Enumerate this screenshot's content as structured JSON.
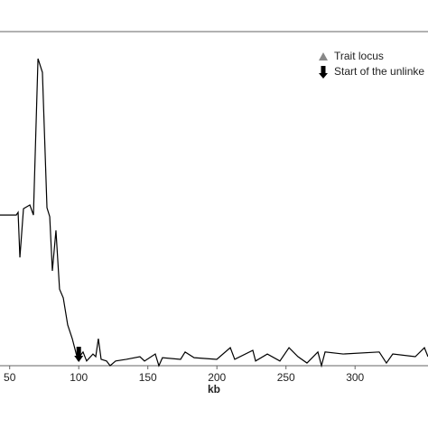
{
  "chart_data": {
    "type": "line",
    "x_label": "kb",
    "x": [
      43.0,
      54.8,
      56.1,
      57.4,
      60.0,
      64.6,
      67.2,
      70.5,
      73.7,
      77.0,
      79.0,
      80.9,
      83.5,
      86.1,
      88.8,
      92.0,
      95.3,
      99.2,
      103.1,
      105.7,
      110.3,
      112.3,
      114.2,
      116.2,
      120.1,
      122.7,
      126.7,
      134.5,
      144.3,
      147.6,
      155.4,
      158.0,
      160.6,
      173.7,
      177.0,
      183.5,
      199.9,
      209.7,
      212.9,
      226.0,
      228.0,
      236.5,
      245.6,
      252.2,
      258.7,
      265.2,
      273.1,
      275.7,
      278.3,
      291.4,
      317.5,
      322.7,
      327.3,
      343.6,
      350.2,
      352.8
    ],
    "series": [
      {
        "color": "#000000",
        "values": [
          45.1,
          45.1,
          45.9,
          32.4,
          47.0,
          48.1,
          45.1,
          91.9,
          87.8,
          47.3,
          44.6,
          28.4,
          40.5,
          22.9,
          20.3,
          12.2,
          8.1,
          1.9,
          4.1,
          1.4,
          3.5,
          2.7,
          8.1,
          1.9,
          1.4,
          0,
          1.4,
          1.9,
          2.7,
          1.4,
          3.5,
          0,
          2.4,
          1.9,
          4.1,
          2.4,
          1.9,
          5.4,
          1.9,
          4.6,
          1.4,
          3.5,
          1.4,
          5.4,
          2.7,
          0.8,
          4.1,
          0,
          4.1,
          3.5,
          4.1,
          0.8,
          3.5,
          2.7,
          5.4,
          2.7
        ]
      }
    ],
    "unlinked_start": 100,
    "legend": [
      {
        "label": "Trait locus",
        "marker": "triangle",
        "color": "#888888"
      },
      {
        "label": "Start of the unlinke",
        "marker": "arrow",
        "color": "#000000"
      }
    ],
    "xlim": [
      43,
      352.8
    ],
    "ylim": [
      0,
      100
    ],
    "xticks": [
      50,
      100,
      150,
      200,
      250,
      300
    ]
  }
}
